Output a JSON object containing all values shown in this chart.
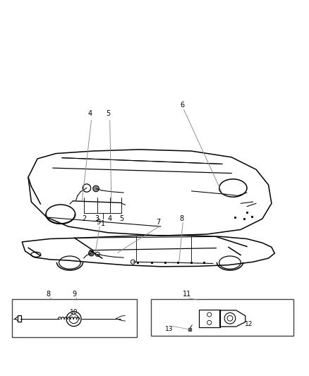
{
  "bg_color": "#ffffff",
  "line_color": "#000000",
  "label_color": "#333333",
  "fig_width": 4.38,
  "fig_height": 5.33,
  "dpi": 100
}
